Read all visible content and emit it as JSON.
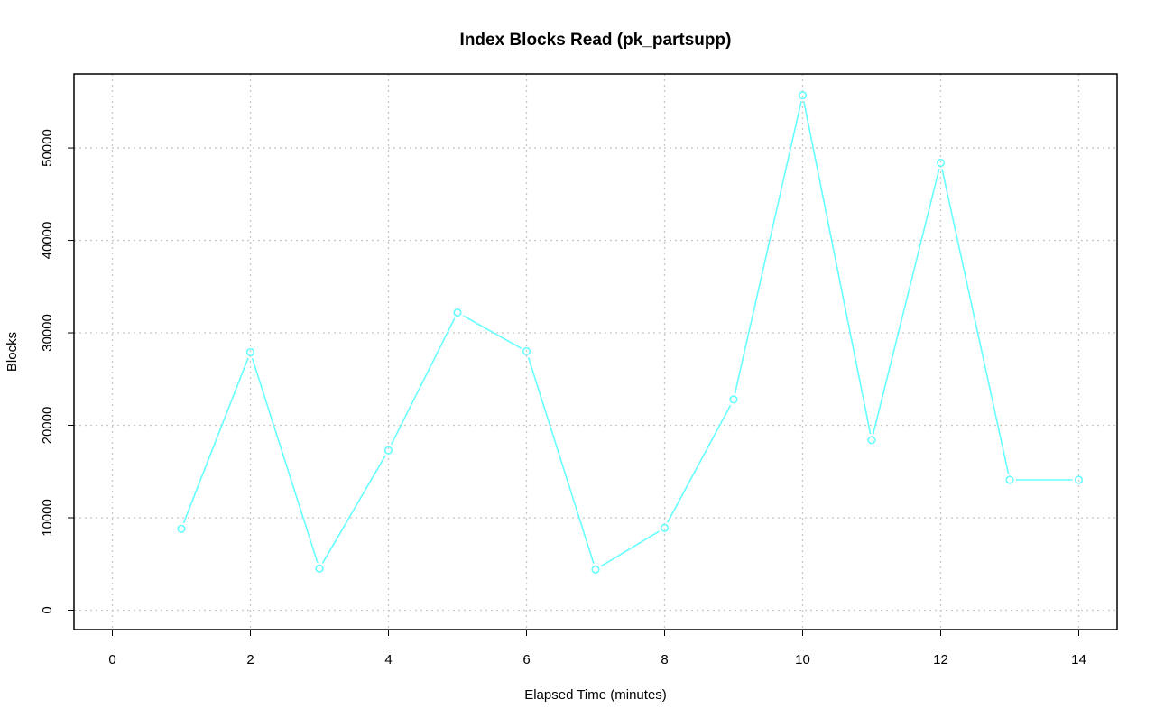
{
  "chart_data": {
    "type": "line",
    "title": "Index Blocks Read (pk_partsupp)",
    "xlabel": "Elapsed Time (minutes)",
    "ylabel": "Blocks",
    "xlim": [
      0,
      14
    ],
    "ylim": [
      0,
      55713
    ],
    "x_ticks": [
      0,
      2,
      4,
      6,
      8,
      10,
      12,
      14
    ],
    "y_ticks": [
      0,
      10000,
      20000,
      30000,
      40000,
      50000
    ],
    "grid": true,
    "series": [
      {
        "color": "#66ffff",
        "marker": "open-circle",
        "x": [
          1,
          2,
          3,
          4,
          5,
          6,
          7,
          8,
          9,
          10,
          11,
          12,
          13,
          14
        ],
        "values": [
          8800,
          27900,
          4500,
          17300,
          32200,
          28000,
          4400,
          8900,
          22800,
          55700,
          18400,
          48400,
          14100,
          14100
        ]
      }
    ]
  }
}
